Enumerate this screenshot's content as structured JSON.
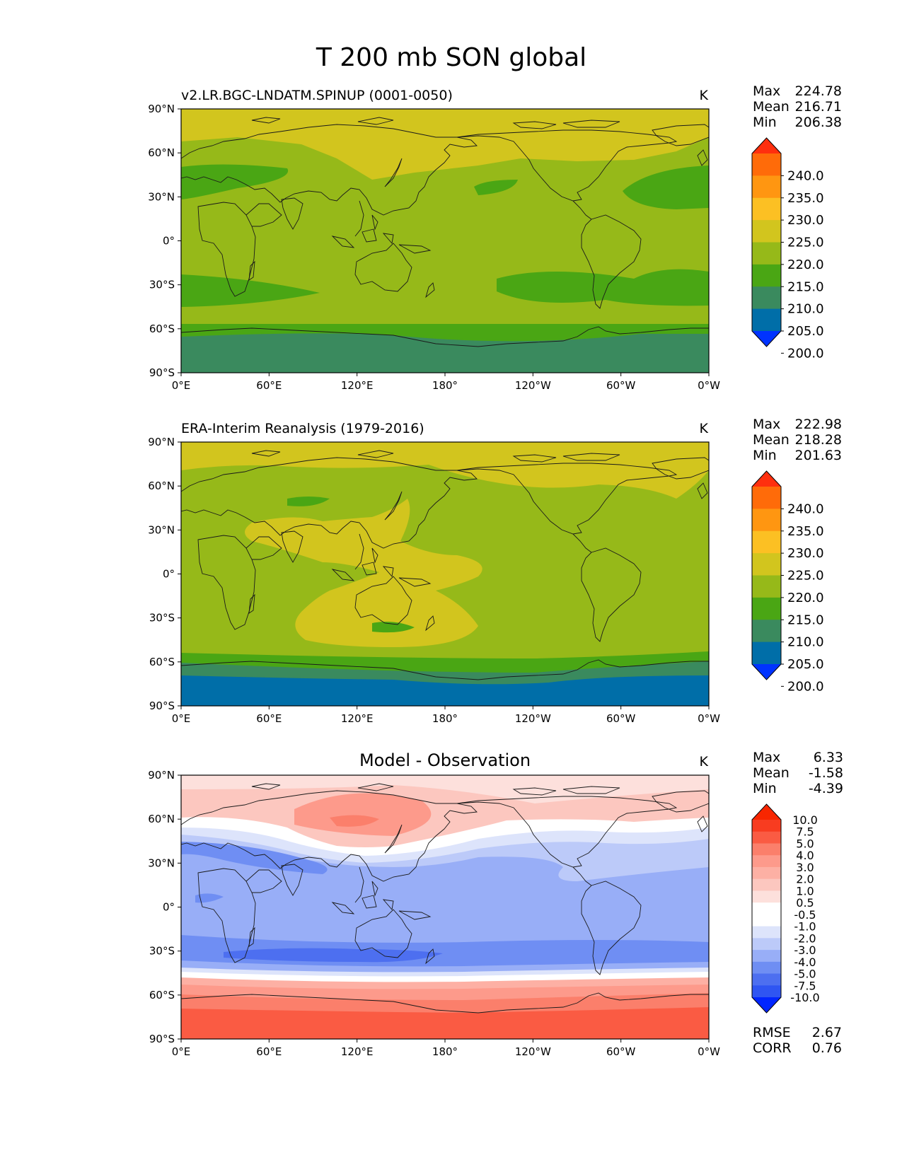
{
  "figure": {
    "title": "T 200 mb SON global",
    "unit": "K",
    "lat_labels": [
      "90°N",
      "60°N",
      "30°N",
      "0°",
      "30°S",
      "60°S",
      "90°S"
    ],
    "lon_labels": [
      "0°E",
      "60°E",
      "120°E",
      "180°",
      "120°W",
      "60°W",
      "0°W"
    ]
  },
  "panels": [
    {
      "id": "model",
      "title": "v2.LR.BGC-LNDATM.SPINUP (0001-0050)",
      "stats": {
        "max_label": "Max",
        "max": "224.78",
        "mean_label": "Mean",
        "mean": "216.71",
        "min_label": "Min",
        "min": "206.38"
      },
      "colorbar": [
        "240.0",
        "235.0",
        "230.0",
        "225.0",
        "220.0",
        "215.0",
        "210.0",
        "205.0",
        "200.0"
      ]
    },
    {
      "id": "obs",
      "title": "ERA-Interim Reanalysis (1979-2016)",
      "stats": {
        "max_label": "Max",
        "max": "222.98",
        "mean_label": "Mean",
        "mean": "218.28",
        "min_label": "Min",
        "min": "201.63"
      },
      "colorbar": [
        "240.0",
        "235.0",
        "230.0",
        "225.0",
        "220.0",
        "215.0",
        "210.0",
        "205.0",
        "200.0"
      ]
    },
    {
      "id": "diff",
      "title": "Model - Observation",
      "stats": {
        "max_label": "Max",
        "max": "6.33",
        "mean_label": "Mean",
        "mean": "-1.58",
        "min_label": "Min",
        "min": "-4.39"
      },
      "colorbar": [
        "10.0",
        "7.5",
        "5.0",
        "4.0",
        "3.0",
        "2.0",
        "1.0",
        "0.5",
        "-0.5",
        "-1.0",
        "-2.0",
        "-3.0",
        "-4.0",
        "-5.0",
        "-7.5",
        "-10.0"
      ],
      "rmse_label": "RMSE",
      "rmse": "2.67",
      "corr_label": "CORR",
      "corr": "0.76"
    }
  ],
  "colors": {
    "abs_scale": [
      "#0033ff",
      "#006ea8",
      "#3a8a5e",
      "#4aa614",
      "#96b919",
      "#d2c51e",
      "#fcc023",
      "#ff9611",
      "#ff6b09",
      "#ff2f0e"
    ],
    "diff_scale": [
      "#0025ff",
      "#2f55f2",
      "#4d6ff0",
      "#6f8ef3",
      "#98aef7",
      "#bccaf9",
      "#dde4fb",
      "#ffffff",
      "#ffffff",
      "#fde0dc",
      "#fcc7bf",
      "#fdb0a4",
      "#fd9a8b",
      "#fb7f6b",
      "#fa5b43",
      "#f83c20",
      "#f82600"
    ]
  }
}
